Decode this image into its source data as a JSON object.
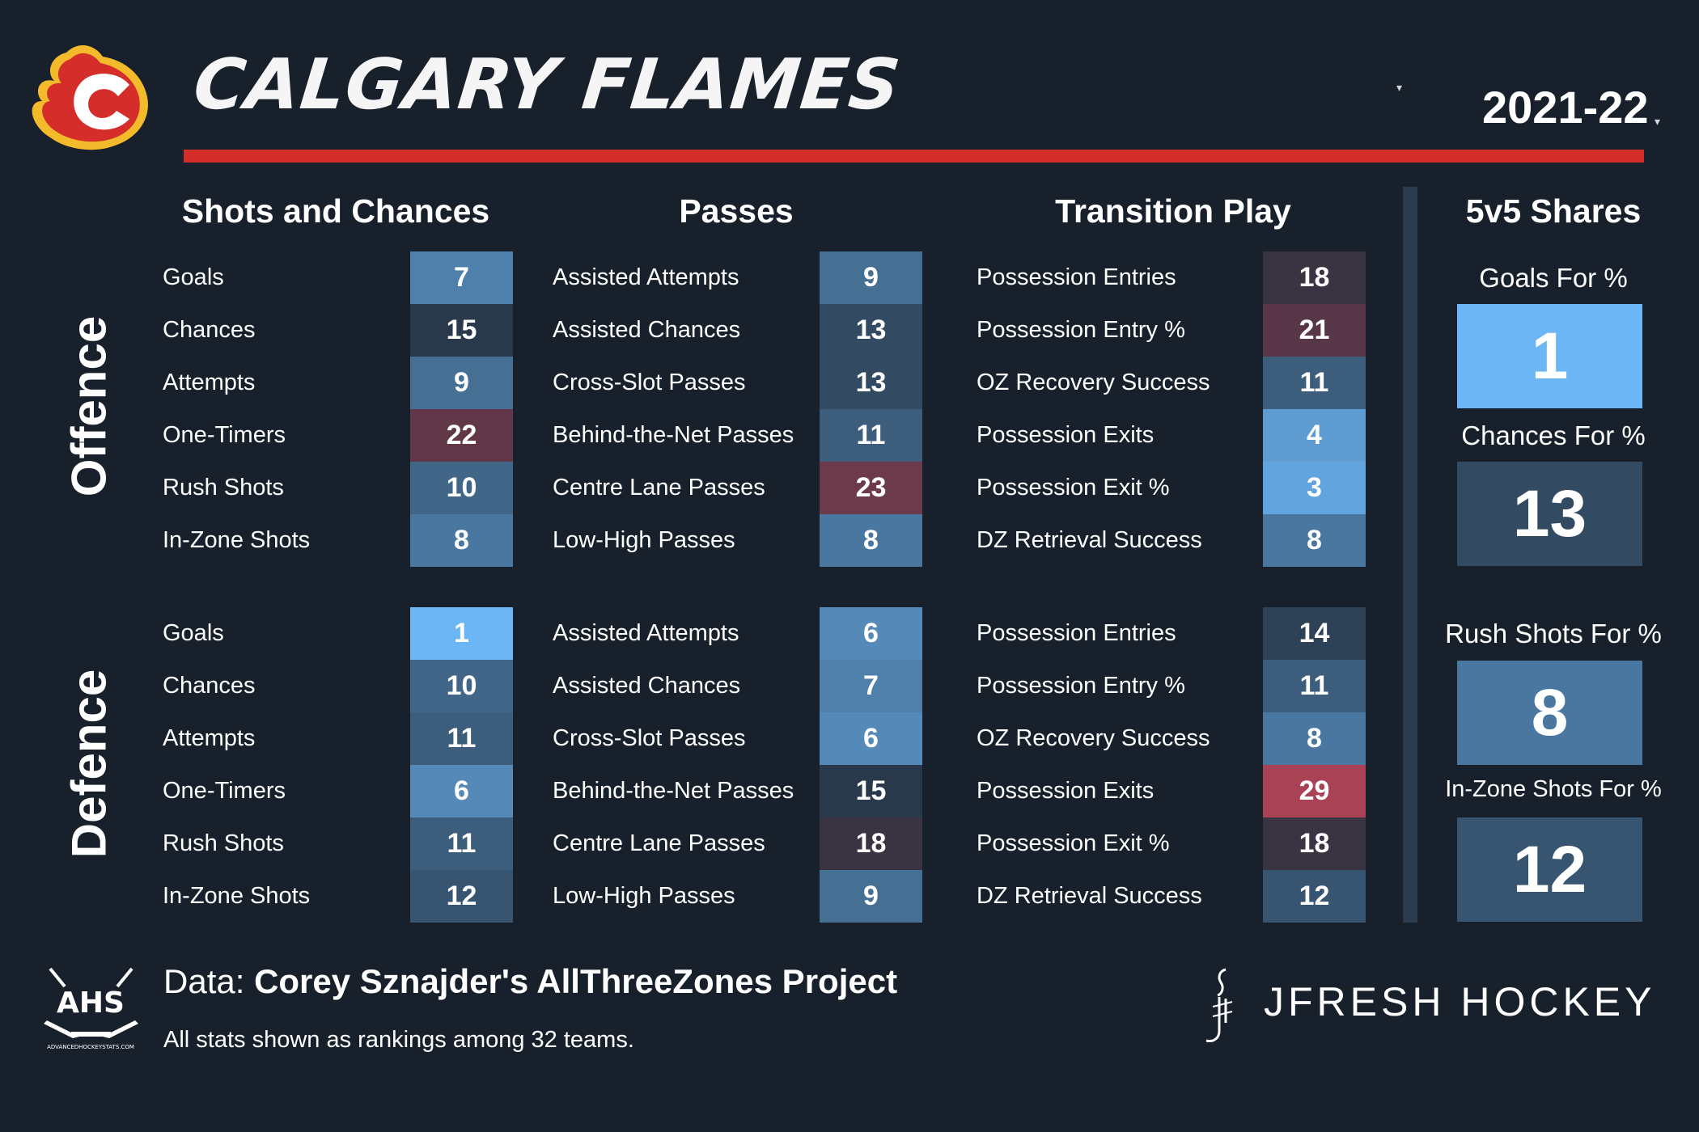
{
  "header": {
    "team_name": "CALGARY FLAMES",
    "season": "2021-22",
    "team_caret": "▾",
    "season_caret": "▾"
  },
  "sections": {
    "shots": "Shots and Chances",
    "passes": "Passes",
    "transition": "Transition Play",
    "shares": "5v5 Shares"
  },
  "groups": {
    "offence": "Offence",
    "defence": "Defence"
  },
  "offence": {
    "shots": [
      {
        "label": "Goals",
        "rank": 7
      },
      {
        "label": "Chances",
        "rank": 15
      },
      {
        "label": "Attempts",
        "rank": 9
      },
      {
        "label": "One-Timers",
        "rank": 22
      },
      {
        "label": "Rush Shots",
        "rank": 10
      },
      {
        "label": "In-Zone Shots",
        "rank": 8
      }
    ],
    "passes": [
      {
        "label": "Assisted Attempts",
        "rank": 9
      },
      {
        "label": "Assisted Chances",
        "rank": 13
      },
      {
        "label": "Cross-Slot Passes",
        "rank": 13
      },
      {
        "label": "Behind-the-Net Passes",
        "rank": 11
      },
      {
        "label": "Centre Lane Passes",
        "rank": 23
      },
      {
        "label": "Low-High Passes",
        "rank": 8
      }
    ],
    "transition": [
      {
        "label": "Possession Entries",
        "rank": 18
      },
      {
        "label": "Possession Entry %",
        "rank": 21
      },
      {
        "label": "OZ Recovery Success",
        "rank": 11
      },
      {
        "label": "Possession Exits",
        "rank": 4
      },
      {
        "label": "Possession Exit %",
        "rank": 3
      },
      {
        "label": "DZ Retrieval Success",
        "rank": 8
      }
    ]
  },
  "defence": {
    "shots": [
      {
        "label": "Goals",
        "rank": 1
      },
      {
        "label": "Chances",
        "rank": 10
      },
      {
        "label": "Attempts",
        "rank": 11
      },
      {
        "label": "One-Timers",
        "rank": 6
      },
      {
        "label": "Rush Shots",
        "rank": 11
      },
      {
        "label": "In-Zone Shots",
        "rank": 12
      }
    ],
    "passes": [
      {
        "label": "Assisted Attempts",
        "rank": 6
      },
      {
        "label": "Assisted Chances",
        "rank": 7
      },
      {
        "label": "Cross-Slot Passes",
        "rank": 6
      },
      {
        "label": "Behind-the-Net Passes",
        "rank": 15
      },
      {
        "label": "Centre Lane Passes",
        "rank": 18
      },
      {
        "label": "Low-High Passes",
        "rank": 9
      }
    ],
    "transition": [
      {
        "label": "Possession Entries",
        "rank": 14
      },
      {
        "label": "Possession Entry %",
        "rank": 11
      },
      {
        "label": "OZ Recovery Success",
        "rank": 8
      },
      {
        "label": "Possession Exits",
        "rank": 29
      },
      {
        "label": "Possession Exit %",
        "rank": 18
      },
      {
        "label": "DZ Retrieval Success",
        "rank": 12
      }
    ]
  },
  "shares": [
    {
      "label": "Goals For %",
      "rank": 1
    },
    {
      "label": "Chances For %",
      "rank": 13
    },
    {
      "label": "Rush Shots For %",
      "rank": 8
    },
    {
      "label": "In-Zone Shots For %",
      "rank": 12
    }
  ],
  "footer": {
    "source_prefix": "Data: ",
    "source_name": "Corey Sznajder's AllThreeZones Project",
    "note": "All stats shown as rankings among 32 teams.",
    "ahs_text": "AHS",
    "ahs_url": "ADVANCEDHOCKEYSTATS.COM",
    "brand": "JFRESH HOCKEY"
  },
  "colors": {
    "background": "#18202c",
    "accent_red": "#d42d2a",
    "rank_best": "#6cb6f5",
    "rank_mid": "#24303f",
    "rank_worst": "#c8465a"
  }
}
